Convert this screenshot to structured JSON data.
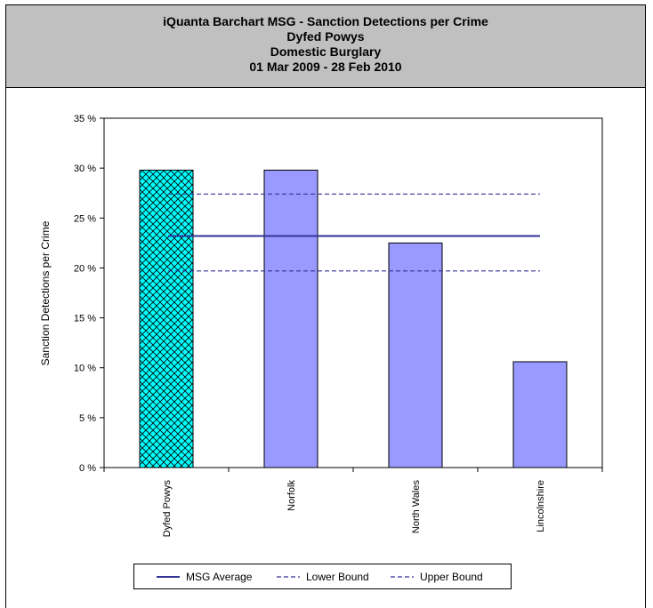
{
  "header": {
    "title_line1": "iQuanta Barchart MSG - Sanction Detections per Crime",
    "title_line2": "Dyfed Powys",
    "title_line3": "Domestic Burglary",
    "title_line4": "01 Mar 2009 - 28 Feb 2010"
  },
  "chart_data": {
    "type": "bar",
    "title": "iQuanta Barchart MSG - Sanction Detections per Crime",
    "subtitle": [
      "Dyfed Powys",
      "Domestic Burglary",
      "01 Mar 2009 - 28 Feb 2010"
    ],
    "ylabel": "Sanction Detections per Crime",
    "xlabel": "",
    "categories": [
      "Dyfed Powys",
      "Norfolk",
      "North Wales",
      "Lincolnshire"
    ],
    "values": [
      29.8,
      29.8,
      22.5,
      10.6
    ],
    "highlight_index": 0,
    "ylim": [
      0,
      35
    ],
    "yticks": [
      0,
      5,
      10,
      15,
      20,
      25,
      30,
      35
    ],
    "ytick_labels": [
      "0 %",
      "5 %",
      "10 %",
      "15 %",
      "20 %",
      "25 %",
      "30 %",
      "35 %"
    ],
    "reference_lines": [
      {
        "name": "MSG Average",
        "value": 23.2,
        "style": "solid"
      },
      {
        "name": "Lower Bound",
        "value": 19.7,
        "style": "dashed"
      },
      {
        "name": "Upper Bound",
        "value": 27.4,
        "style": "dashed"
      }
    ],
    "grid": false,
    "legend_position": "bottom",
    "colors": {
      "bar": "#9999ff",
      "highlight": "#00ffff",
      "line": "#333399"
    }
  },
  "legend": {
    "items": [
      "MSG Average",
      "Lower Bound",
      "Upper Bound"
    ]
  }
}
